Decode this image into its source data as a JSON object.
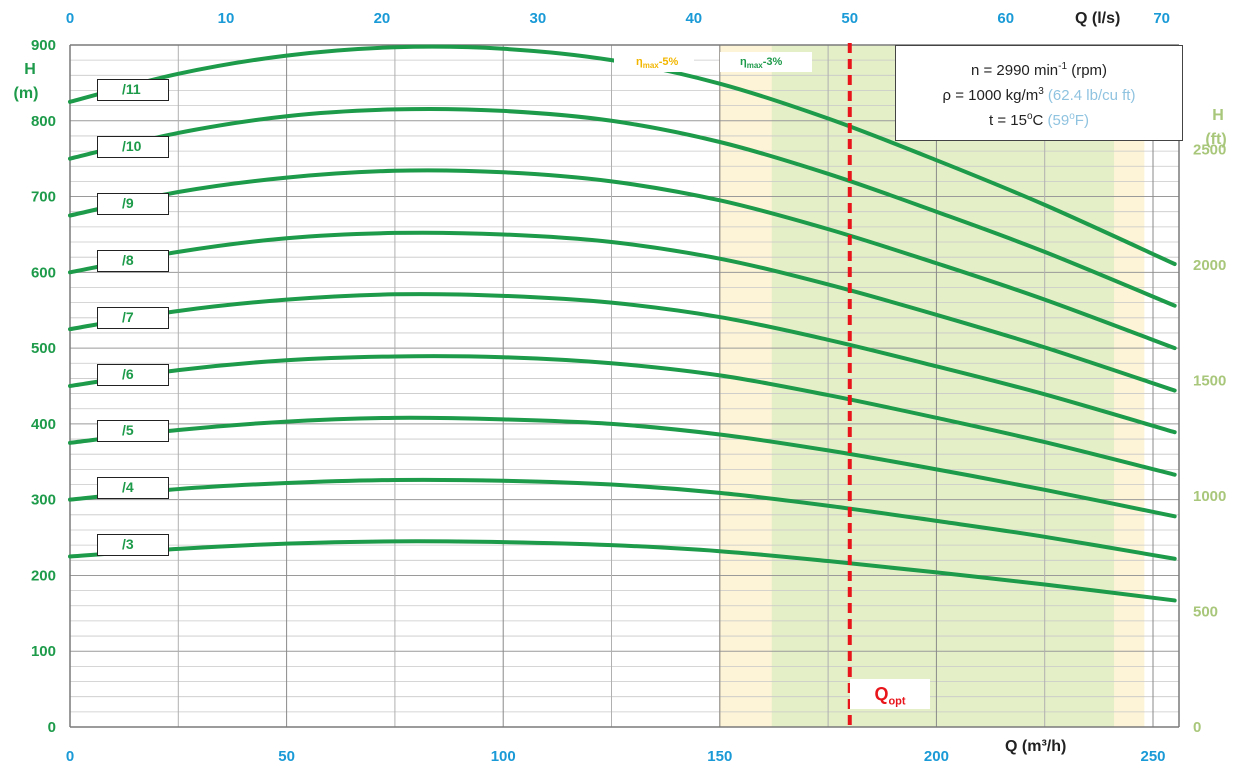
{
  "chart_data": {
    "type": "line",
    "x_bottom": {
      "label": "Q (m³/h)",
      "range": [
        0,
        256
      ],
      "ticks": [
        0,
        50,
        100,
        150,
        200,
        250
      ]
    },
    "x_top": {
      "label": "Q (l/s)",
      "ticks": [
        0,
        10,
        20,
        30,
        40,
        50,
        60,
        70
      ]
    },
    "y_left": {
      "label": "H (m)",
      "range": [
        0,
        900
      ],
      "ticks": [
        0,
        100,
        200,
        300,
        400,
        500,
        600,
        700,
        800,
        900
      ]
    },
    "y_right": {
      "label": "H (ft)",
      "ticks": [
        0,
        500,
        1000,
        1500,
        2000,
        2500
      ]
    },
    "series": [
      {
        "name": "/3",
        "x": [
          0,
          25,
          50,
          75,
          100,
          125,
          150,
          175,
          200,
          225,
          255
        ],
        "y": [
          225,
          235,
          242,
          245,
          244,
          240,
          232,
          219,
          204,
          188,
          167
        ]
      },
      {
        "name": "/4",
        "x": [
          0,
          25,
          50,
          75,
          100,
          125,
          150,
          175,
          200,
          225,
          255
        ],
        "y": [
          300,
          314,
          322,
          326,
          325,
          320,
          309,
          292,
          272,
          251,
          222
        ]
      },
      {
        "name": "/5",
        "x": [
          0,
          25,
          50,
          75,
          100,
          125,
          150,
          175,
          200,
          225,
          255
        ],
        "y": [
          375,
          392,
          403,
          408,
          406,
          400,
          386,
          365,
          340,
          313,
          278
        ]
      },
      {
        "name": "/6",
        "x": [
          0,
          25,
          50,
          75,
          100,
          125,
          150,
          175,
          200,
          225,
          255
        ],
        "y": [
          450,
          471,
          484,
          489,
          488,
          480,
          464,
          438,
          408,
          376,
          333
        ]
      },
      {
        "name": "/7",
        "x": [
          0,
          25,
          50,
          75,
          100,
          125,
          150,
          175,
          200,
          225,
          255
        ],
        "y": [
          525,
          549,
          564,
          571,
          569,
          560,
          541,
          511,
          476,
          439,
          389
        ]
      },
      {
        "name": "/8",
        "x": [
          0,
          25,
          50,
          75,
          100,
          125,
          150,
          175,
          200,
          225,
          255
        ],
        "y": [
          600,
          627,
          645,
          652,
          650,
          640,
          618,
          584,
          544,
          501,
          444
        ]
      },
      {
        "name": "/9",
        "x": [
          0,
          25,
          50,
          75,
          100,
          125,
          150,
          175,
          200,
          225,
          255
        ],
        "y": [
          675,
          706,
          725,
          734,
          732,
          720,
          695,
          657,
          612,
          564,
          500
        ]
      },
      {
        "name": "/10",
        "x": [
          0,
          25,
          50,
          75,
          100,
          125,
          150,
          175,
          200,
          225,
          255
        ],
        "y": [
          750,
          784,
          806,
          815,
          813,
          800,
          772,
          730,
          680,
          627,
          556
        ]
      },
      {
        "name": "/11",
        "x": [
          0,
          25,
          50,
          75,
          100,
          125,
          150,
          175,
          200,
          225,
          255
        ],
        "y": [
          825,
          862,
          886,
          897,
          895,
          880,
          849,
          803,
          748,
          689,
          611
        ]
      }
    ],
    "bands": [
      {
        "label": "ηmax-5%",
        "from": 150,
        "to": 248,
        "color": "#fdf3d6"
      },
      {
        "label": "ηmax-3%",
        "from": 162,
        "to": 241,
        "color": "#e4efc7"
      }
    ],
    "q_opt": {
      "x": 180,
      "label": "Qopt",
      "color": "#e8161b"
    },
    "grid": true,
    "curve_color": "#1d9a4a"
  },
  "labels": {
    "x_bottom_title": "Q (m³/h)",
    "x_top_title": "Q (l/s)",
    "y_left_title_1": "H",
    "y_left_title_2": "(m)",
    "y_right_title_1": "H",
    "y_right_title_2": "(ft)",
    "eta5_main": "η",
    "eta5_sub": "max",
    "eta5_tail": "-5%",
    "eta3_main": "η",
    "eta3_sub": "max",
    "eta3_tail": "-3%",
    "qopt_main": "Q",
    "qopt_sub": "opt"
  },
  "info": {
    "speed_a": "n = 2990 min",
    "speed_sup": "-1",
    "speed_b": " (rpm)",
    "density_a": "ρ = 1000 kg/m",
    "density_sup": "3",
    "density_imp": " (62.4 lb/cu ft)",
    "temp_a": "t = 15",
    "temp_sup": "o",
    "temp_b": "C",
    "temp_imp": " (59",
    "temp_imp_sup": "o",
    "temp_imp_end": "F)"
  },
  "colors": {
    "green": "#1d9a4a",
    "blue": "#1a9ad6",
    "lightgreen": "#a9c77a",
    "red": "#e8161b"
  }
}
